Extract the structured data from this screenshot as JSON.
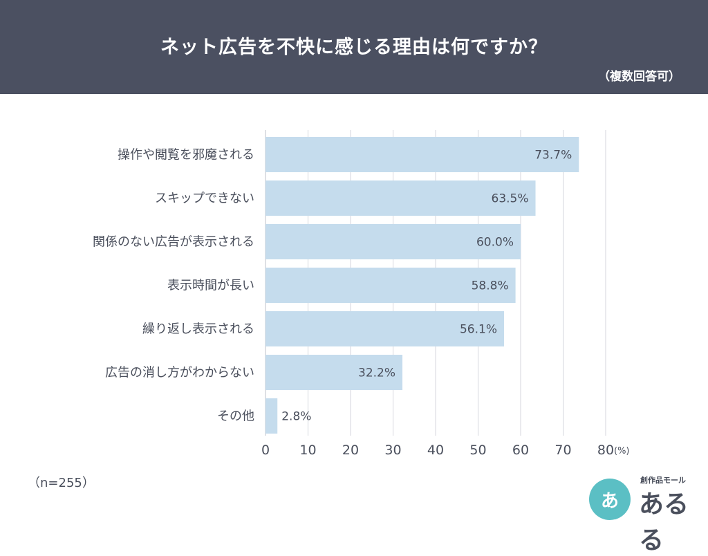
{
  "header": {
    "title": "ネット広告を不快に感じる理由は何ですか？",
    "subtitle": "（複数回答可）"
  },
  "footer": {
    "sample_size": "（n=255）"
  },
  "logo": {
    "circle_text": "あ",
    "small_text": "創作品モール",
    "main_text": "あるる"
  },
  "chart_data": {
    "type": "bar",
    "orientation": "horizontal",
    "categories": [
      "操作や閲覧を邪魔される",
      "スキップできない",
      "関係のない広告が表示される",
      "表示時間が長い",
      "繰り返し表示される",
      "広告の消し方がわからない",
      "その他"
    ],
    "values": [
      73.7,
      63.5,
      60.0,
      58.8,
      56.1,
      32.2,
      2.8
    ],
    "value_labels": [
      "73.7%",
      "63.5%",
      "60.0%",
      "58.8%",
      "56.1%",
      "32.2%",
      "2.8%"
    ],
    "xlim": [
      0,
      80
    ],
    "xticks": [
      0,
      10,
      20,
      30,
      40,
      50,
      60,
      70,
      80
    ],
    "x_unit": "(%)",
    "grid": true,
    "bar_color": "#c5dced",
    "grid_color": "#d4d6dc"
  }
}
